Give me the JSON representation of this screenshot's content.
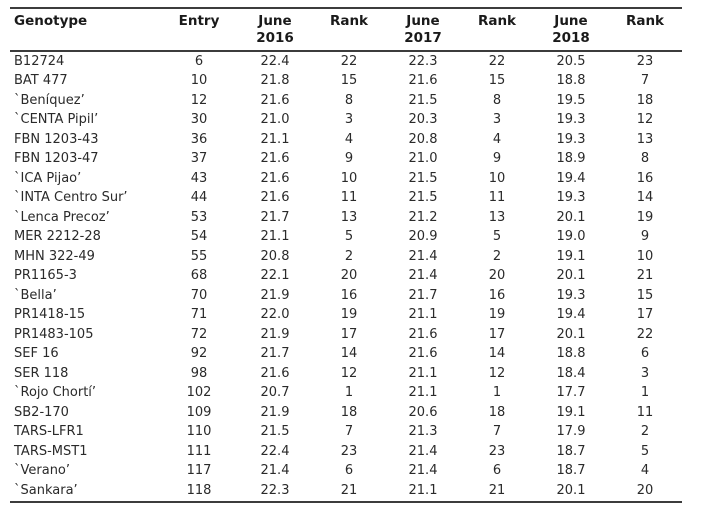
{
  "table": {
    "columns": [
      {
        "label": "Genotype",
        "align": "left"
      },
      {
        "label": "Entry",
        "align": "center"
      },
      {
        "label": "June\n2016",
        "align": "center"
      },
      {
        "label": "Rank",
        "align": "center"
      },
      {
        "label": "June\n2017",
        "align": "center"
      },
      {
        "label": "Rank",
        "align": "center"
      },
      {
        "label": "June\n2018",
        "align": "center"
      },
      {
        "label": "Rank",
        "align": "center"
      }
    ],
    "rows": [
      [
        "B12724",
        "6",
        "22.4",
        "22",
        "22.3",
        "22",
        "20.5",
        "23"
      ],
      [
        "BAT 477",
        "10",
        "21.8",
        "15",
        "21.6",
        "15",
        "18.8",
        "7"
      ],
      [
        "`Beníquez’",
        "12",
        "21.6",
        "8",
        "21.5",
        "8",
        "19.5",
        "18"
      ],
      [
        "`CENTA Pipil’",
        "30",
        "21.0",
        "3",
        "20.3",
        "3",
        "19.3",
        "12"
      ],
      [
        "FBN 1203-43",
        "36",
        "21.1",
        "4",
        "20.8",
        "4",
        "19.3",
        "13"
      ],
      [
        "FBN 1203-47",
        "37",
        "21.6",
        "9",
        "21.0",
        "9",
        "18.9",
        "8"
      ],
      [
        "`ICA Pijao’",
        "43",
        "21.6",
        "10",
        "21.5",
        "10",
        "19.4",
        "16"
      ],
      [
        "`INTA Centro Sur’",
        "44",
        "21.6",
        "11",
        "21.5",
        "11",
        "19.3",
        "14"
      ],
      [
        "`Lenca Precoz’",
        "53",
        "21.7",
        "13",
        "21.2",
        "13",
        "20.1",
        "19"
      ],
      [
        "MER 2212-28",
        "54",
        "21.1",
        "5",
        "20.9",
        "5",
        "19.0",
        "9"
      ],
      [
        "MHN 322-49",
        "55",
        "20.8",
        "2",
        "21.4",
        "2",
        "19.1",
        "10"
      ],
      [
        "PR1165-3",
        "68",
        "22.1",
        "20",
        "21.4",
        "20",
        "20.1",
        "21"
      ],
      [
        "`Bella’",
        "70",
        "21.9",
        "16",
        "21.7",
        "16",
        "19.3",
        "15"
      ],
      [
        "PR1418-15",
        "71",
        "22.0",
        "19",
        "21.1",
        "19",
        "19.4",
        "17"
      ],
      [
        "PR1483-105",
        "72",
        "21.9",
        "17",
        "21.6",
        "17",
        "20.1",
        "22"
      ],
      [
        "SEF 16",
        "92",
        "21.7",
        "14",
        "21.6",
        "14",
        "18.8",
        "6"
      ],
      [
        "SER 118",
        "98",
        "21.6",
        "12",
        "21.1",
        "12",
        "18.4",
        "3"
      ],
      [
        "`Rojo Chortí’",
        "102",
        "20.7",
        "1",
        "21.1",
        "1",
        "17.7",
        "1"
      ],
      [
        "SB2-170",
        "109",
        "21.9",
        "18",
        "20.6",
        "18",
        "19.1",
        "11"
      ],
      [
        "TARS-LFR1",
        "110",
        "21.5",
        "7",
        "21.3",
        "7",
        "17.9",
        "2"
      ],
      [
        "TARS-MST1",
        "111",
        "22.4",
        "23",
        "21.4",
        "23",
        "18.7",
        "5"
      ],
      [
        "`Verano’",
        "117",
        "21.4",
        "6",
        "21.4",
        "6",
        "18.7",
        "4"
      ],
      [
        "`Sankara’",
        "118",
        "22.3",
        "21",
        "21.1",
        "21",
        "20.1",
        "20"
      ]
    ],
    "colors": {
      "rule": "#3c3c3c",
      "header_text": "#1a1a1a",
      "body_text": "#2a2a2a",
      "background": "#ffffff"
    }
  }
}
